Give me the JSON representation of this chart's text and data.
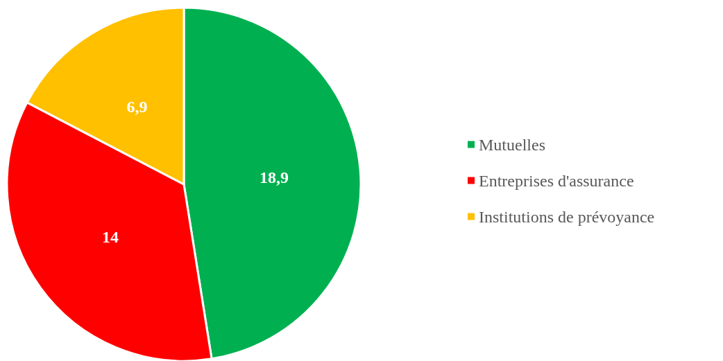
{
  "chart_data": {
    "type": "pie",
    "categories": [
      "Mutuelles",
      "Entreprises d'assurance",
      "Institutions de prévoyance"
    ],
    "values": [
      18.9,
      14,
      6.9
    ],
    "value_labels": [
      "18,9",
      "14",
      "6,9"
    ],
    "colors": [
      "#00b050",
      "#ff0000",
      "#ffc000"
    ],
    "legend": "right"
  }
}
